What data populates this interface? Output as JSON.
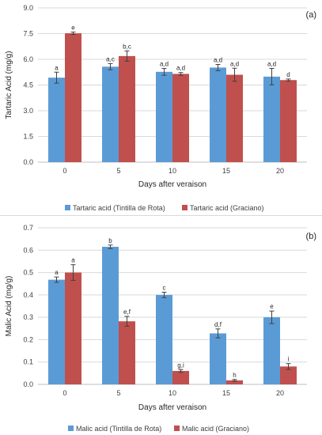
{
  "colors": {
    "series1": "#5b9bd5",
    "series2": "#c0504d",
    "grid": "#d9d9d9",
    "axis": "#bfbfbf",
    "error_bar": "#404040"
  },
  "chart_data": [
    {
      "type": "bar",
      "panel_label": "(a)",
      "xlabel": "Days after veraison",
      "ylabel": "Tartaric Acid (mg/g)",
      "categories": [
        "0",
        "5",
        "10",
        "15",
        "20"
      ],
      "ylim": [
        0,
        9
      ],
      "yticks": [
        "0.0",
        "1.5",
        "3.0",
        "4.5",
        "6.0",
        "7.5",
        "9.0"
      ],
      "grid": true,
      "legend_position": "bottom",
      "series": [
        {
          "name": "Tartaric acid (Tintilla de Rota)",
          "values": [
            4.93,
            5.57,
            5.27,
            5.52,
            4.99
          ],
          "errors": [
            0.32,
            0.18,
            0.2,
            0.18,
            0.48
          ],
          "labels": [
            "a",
            "a,c",
            "a,d",
            "a,d",
            "a,d"
          ]
        },
        {
          "name": "Tartaric acid (Graciano)",
          "values": [
            7.52,
            6.19,
            5.15,
            5.1,
            4.79
          ],
          "errors": [
            0.07,
            0.3,
            0.08,
            0.38,
            0.06
          ],
          "labels": [
            "e",
            "b,c",
            "a,d",
            "a,d",
            "d"
          ]
        }
      ]
    },
    {
      "type": "bar",
      "panel_label": "(b)",
      "xlabel": "Days after veraison",
      "ylabel": "Malic Acid (mg/g)",
      "categories": [
        "0",
        "5",
        "10",
        "15",
        "20"
      ],
      "ylim": [
        0,
        0.7
      ],
      "yticks": [
        "0.0",
        "0.1",
        "0.2",
        "0.3",
        "0.4",
        "0.5",
        "0.6",
        "0.7"
      ],
      "grid": true,
      "legend_position": "bottom",
      "series": [
        {
          "name": "Malic acid (Tintilla de Rota)",
          "values": [
            0.468,
            0.615,
            0.4,
            0.228,
            0.3
          ],
          "errors": [
            0.012,
            0.008,
            0.012,
            0.02,
            0.028
          ],
          "labels": [
            "a",
            "b",
            "c",
            "d,f",
            "e"
          ]
        },
        {
          "name": "Malic acid (Graciano)",
          "values": [
            0.5,
            0.282,
            0.06,
            0.018,
            0.08
          ],
          "errors": [
            0.035,
            0.022,
            0.006,
            0.004,
            0.013
          ],
          "labels": [
            "a",
            "e,f",
            "g,i",
            "h",
            "i"
          ]
        }
      ]
    }
  ]
}
